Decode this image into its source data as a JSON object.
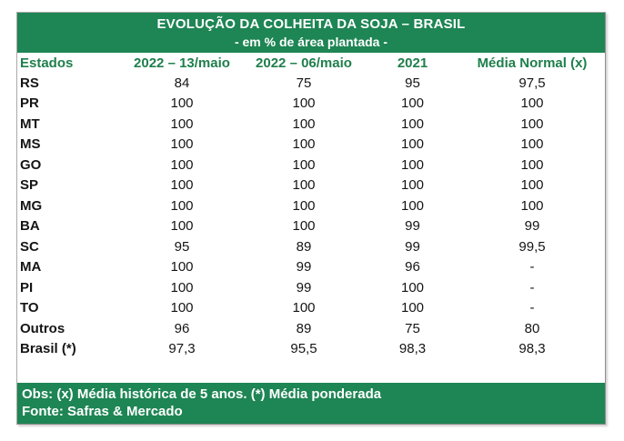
{
  "chart_data": {
    "type": "table",
    "title": "EVOLUÇÃO DA COLHEITA DA SOJA – BRASIL",
    "subtitle": "- em % de área plantada -",
    "columns": [
      "Estados",
      "2022 – 13/maio",
      "2022 – 06/maio",
      "2021",
      "Média Normal (x)"
    ],
    "rows": [
      {
        "estado": "RS",
        "values": [
          "84",
          "75",
          "95",
          "97,5"
        ]
      },
      {
        "estado": "PR",
        "values": [
          "100",
          "100",
          "100",
          "100"
        ]
      },
      {
        "estado": "MT",
        "values": [
          "100",
          "100",
          "100",
          "100"
        ]
      },
      {
        "estado": "MS",
        "values": [
          "100",
          "100",
          "100",
          "100"
        ]
      },
      {
        "estado": "GO",
        "values": [
          "100",
          "100",
          "100",
          "100"
        ]
      },
      {
        "estado": "SP",
        "values": [
          "100",
          "100",
          "100",
          "100"
        ]
      },
      {
        "estado": "MG",
        "values": [
          "100",
          "100",
          "100",
          "100"
        ]
      },
      {
        "estado": "BA",
        "values": [
          "100",
          "100",
          "99",
          "99"
        ]
      },
      {
        "estado": "SC",
        "values": [
          "95",
          "89",
          "99",
          "99,5"
        ]
      },
      {
        "estado": "MA",
        "values": [
          "100",
          "99",
          "96",
          "-"
        ]
      },
      {
        "estado": "PI",
        "values": [
          "100",
          "99",
          "100",
          "-"
        ]
      },
      {
        "estado": "TO",
        "values": [
          "100",
          "100",
          "100",
          "-"
        ]
      },
      {
        "estado": "Outros",
        "values": [
          "96",
          "89",
          "75",
          "80"
        ]
      },
      {
        "estado": "Brasil (*)",
        "values": [
          "97,3",
          "95,5",
          "98,3",
          "98,3"
        ]
      }
    ],
    "footer": {
      "obs": "Obs: (x) Média histórica de 5 anos. (*) Média ponderada",
      "fonte": "Fonte: Safras & Mercado"
    }
  },
  "colors": {
    "banner_green": "#1E8554",
    "header_text_green": "#1F7F4C",
    "body_text": "#151515",
    "banner_text": "#FFFFFF"
  }
}
